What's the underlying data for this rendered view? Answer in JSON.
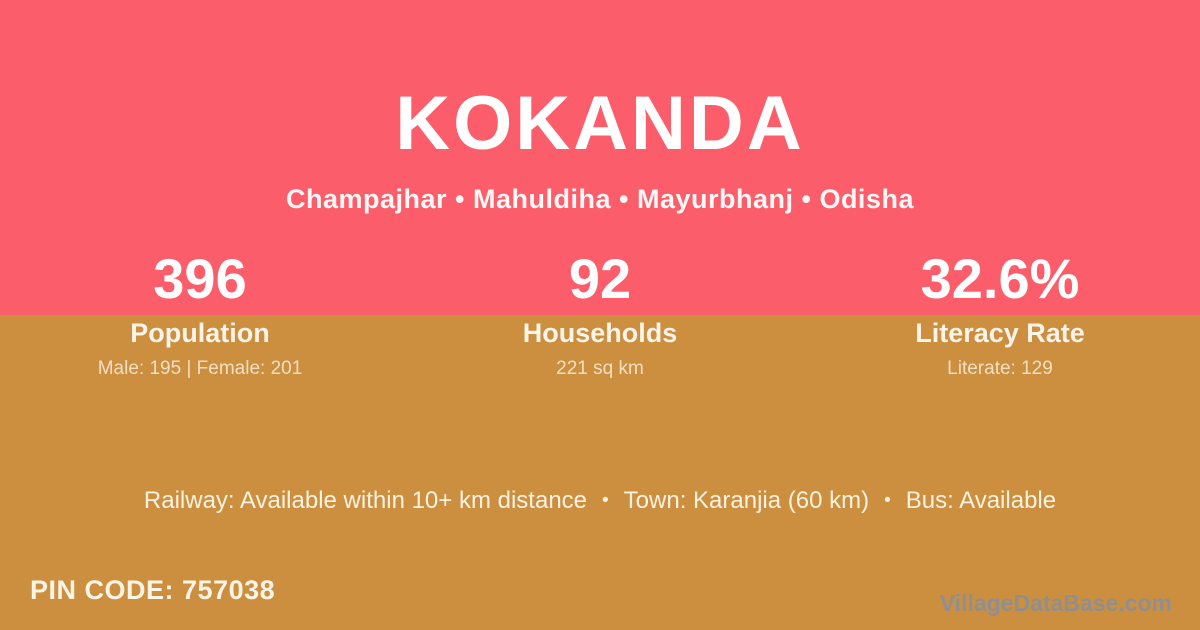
{
  "colors": {
    "banner_pink": "#FB5D6B",
    "panel_gold": "#CC8F3F",
    "text_white": "#FFFFFF",
    "detail_cream": "#FCF3E9",
    "watermark_gray": "#8F8F92"
  },
  "header": {
    "title": "KOKANDA",
    "subtitle": "Champajhar • Mahuldiha • Mayurbhanj • Odisha"
  },
  "stats": [
    {
      "value": "396",
      "label": "Population",
      "detail": "Male: 195 | Female: 201"
    },
    {
      "value": "92",
      "label": "Households",
      "detail": "221 sq km"
    },
    {
      "value": "32.6%",
      "label": "Literacy Rate",
      "detail": "Literate: 129"
    }
  ],
  "transit": {
    "separator": "•",
    "items": [
      "Railway: Available within 10+ km distance",
      "Town: Karanjia (60 km)",
      "Bus: Available"
    ]
  },
  "footer": {
    "pin_label": "PIN CODE:",
    "pin_value": "757038",
    "watermark": "VillageDataBase.com"
  }
}
